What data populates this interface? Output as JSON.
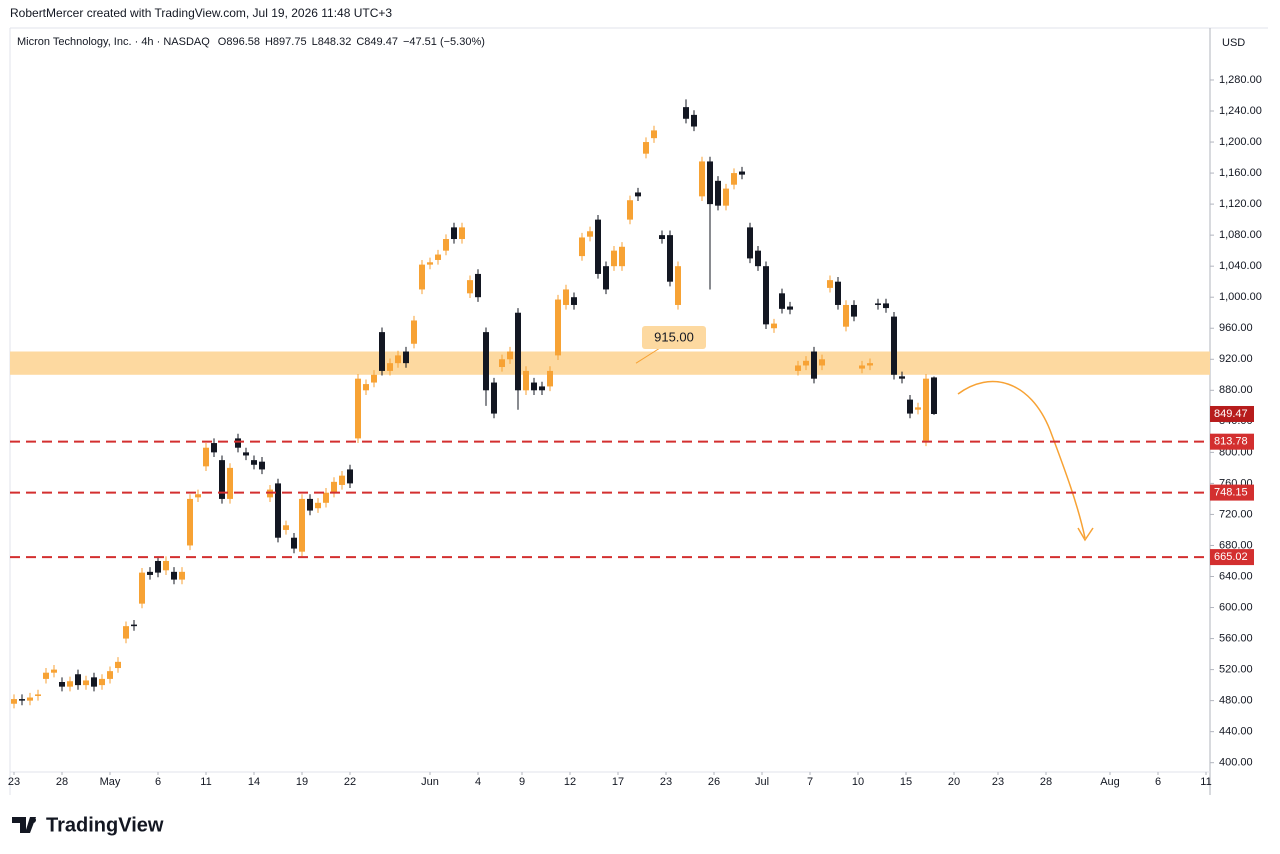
{
  "header": {
    "credit": "RobertMercer created with TradingView.com, Jul 19, 2026 11:48 UTC+3",
    "brand": "TradingView"
  },
  "chart_data": {
    "type": "candlestick",
    "symbol": "Micron Technology, Inc. · 4h · NASDAQ",
    "ohlc_text": [
      "O896.58",
      "H897.75",
      "L848.32",
      "C849.47"
    ],
    "change": "−47.51 (−5.30%)",
    "currency": "USD",
    "up_color": "#f7a234",
    "down_color": "#131722",
    "open": [
      476,
      482,
      480,
      486,
      508,
      516,
      504,
      498,
      514,
      500,
      510,
      500,
      508,
      522,
      560,
      578,
      605,
      646,
      660,
      648,
      646,
      636,
      680,
      742,
      782,
      812,
      790,
      740,
      818,
      800,
      790,
      788,
      742,
      760,
      700,
      690,
      672,
      740,
      728,
      735,
      748,
      758,
      778,
      818,
      880,
      890,
      955,
      905,
      915,
      930,
      940,
      1010,
      1042,
      1048,
      1060,
      1090,
      1075,
      1005,
      1030,
      955,
      890,
      910,
      920,
      980,
      880,
      890,
      885,
      885,
      925,
      990,
      1000,
      1053,
      1078,
      1100,
      1040,
      1040,
      1040,
      1100,
      1135,
      1185,
      1205,
      1080,
      1080,
      990,
      1245,
      1235,
      1130,
      1175,
      1150,
      1118,
      1145,
      1162,
      1090,
      1060,
      1040,
      960,
      1005,
      988,
      905,
      912,
      930,
      912,
      1012,
      1020,
      962,
      990,
      908,
      912,
      992,
      992,
      975,
      898,
      868,
      855,
      815,
      896.58
    ],
    "high": [
      488,
      488,
      490,
      494,
      522,
      526,
      510,
      511,
      520,
      512,
      516,
      514,
      524,
      536,
      582,
      584,
      651,
      652,
      666,
      666,
      652,
      652,
      746,
      752,
      812,
      818,
      796,
      786,
      824,
      806,
      796,
      794,
      758,
      766,
      712,
      696,
      746,
      746,
      741,
      754,
      768,
      776,
      784,
      901,
      894,
      906,
      961,
      921,
      931,
      936,
      976,
      1048,
      1051,
      1061,
      1081,
      1096,
      1096,
      1028,
      1036,
      961,
      896,
      926,
      936,
      986,
      911,
      896,
      891,
      911,
      1003,
      1016,
      1006,
      1083,
      1091,
      1106,
      1046,
      1066,
      1071,
      1131,
      1141,
      1206,
      1221,
      1086,
      1086,
      1046,
      1255,
      1241,
      1181,
      1181,
      1156,
      1146,
      1166,
      1168,
      1096,
      1066,
      1046,
      972,
      1011,
      994,
      918,
      924,
      936,
      926,
      1028,
      1026,
      996,
      996,
      918,
      921,
      998,
      998,
      981,
      904,
      874,
      864,
      901,
      897.75
    ],
    "low": [
      470,
      474,
      474,
      480,
      502,
      510,
      492,
      492,
      494,
      494,
      492,
      494,
      502,
      516,
      554,
      570,
      599,
      636,
      639,
      642,
      630,
      630,
      674,
      736,
      776,
      794,
      734,
      734,
      800,
      790,
      778,
      772,
      736,
      684,
      694,
      670,
      666,
      719,
      722,
      729,
      742,
      752,
      754,
      812,
      874,
      884,
      899,
      899,
      909,
      909,
      934,
      1004,
      1036,
      1042,
      1054,
      1069,
      1069,
      999,
      994,
      860,
      844,
      904,
      914,
      855,
      874,
      874,
      874,
      879,
      919,
      984,
      984,
      1047,
      1072,
      1024,
      1004,
      1034,
      1034,
      1094,
      1124,
      1179,
      1199,
      1069,
      1014,
      984,
      1224,
      1214,
      1124,
      1010,
      1112,
      1112,
      1139,
      1152,
      1044,
      1034,
      959,
      954,
      979,
      978,
      899,
      906,
      889,
      906,
      1006,
      984,
      956,
      969,
      902,
      906,
      984,
      980,
      894,
      889,
      844,
      849,
      808,
      848.32
    ],
    "close": [
      482,
      480,
      484,
      488,
      516,
      520,
      498,
      505,
      500,
      506,
      498,
      508,
      518,
      530,
      576,
      576,
      645,
      642,
      645,
      660,
      636,
      646,
      740,
      746,
      806,
      800,
      740,
      780,
      806,
      796,
      784,
      778,
      752,
      690,
      706,
      676,
      740,
      725,
      735,
      748,
      762,
      770,
      760,
      895,
      888,
      900,
      905,
      915,
      925,
      915,
      970,
      1042,
      1045,
      1055,
      1075,
      1075,
      1090,
      1022,
      1000,
      880,
      850,
      920,
      930,
      880,
      905,
      880,
      880,
      905,
      997,
      1010,
      990,
      1077,
      1085,
      1030,
      1010,
      1060,
      1065,
      1125,
      1130,
      1200,
      1215,
      1075,
      1020,
      1040,
      1230,
      1220,
      1175,
      1120,
      1118,
      1140,
      1160,
      1158,
      1050,
      1040,
      965,
      966,
      985,
      984,
      912,
      918,
      895,
      920,
      1022,
      990,
      990,
      975,
      912,
      915,
      990,
      986,
      900,
      895,
      850,
      858,
      895,
      849.47
    ],
    "xlim": [
      -0.5,
      149.5
    ],
    "xticks": [
      {
        "value": 0,
        "label": "23"
      },
      {
        "value": 6,
        "label": "28"
      },
      {
        "value": 12,
        "label": "May"
      },
      {
        "value": 18,
        "label": "6"
      },
      {
        "value": 24,
        "label": "11"
      },
      {
        "value": 30,
        "label": "14"
      },
      {
        "value": 36,
        "label": "19"
      },
      {
        "value": 42,
        "label": "22"
      },
      {
        "value": 52,
        "label": "Jun"
      },
      {
        "value": 58,
        "label": "4"
      },
      {
        "value": 63.5,
        "label": "9"
      },
      {
        "value": 69.5,
        "label": "12"
      },
      {
        "value": 75.5,
        "label": "17"
      },
      {
        "value": 81.5,
        "label": "23"
      },
      {
        "value": 87.5,
        "label": "26"
      },
      {
        "value": 93.5,
        "label": "Jul"
      },
      {
        "value": 99.5,
        "label": "7"
      },
      {
        "value": 105.5,
        "label": "10"
      },
      {
        "value": 111.5,
        "label": "15"
      },
      {
        "value": 117.5,
        "label": "20"
      },
      {
        "value": 123,
        "label": "23"
      },
      {
        "value": 129,
        "label": "28"
      },
      {
        "value": 137,
        "label": "Aug"
      },
      {
        "value": 143,
        "label": "6"
      },
      {
        "value": 149,
        "label": "11"
      }
    ],
    "ylim": [
      388,
      1347
    ],
    "yticks": [
      {
        "value": 400,
        "label": "400.00"
      },
      {
        "value": 440,
        "label": "440.00"
      },
      {
        "value": 480,
        "label": "480.00"
      },
      {
        "value": 520,
        "label": "520.00"
      },
      {
        "value": 560,
        "label": "560.00"
      },
      {
        "value": 600,
        "label": "600.00"
      },
      {
        "value": 640,
        "label": "640.00"
      },
      {
        "value": 680,
        "label": "680.00"
      },
      {
        "value": 720,
        "label": "720.00"
      },
      {
        "value": 760,
        "label": "760.00"
      },
      {
        "value": 800,
        "label": "800.00"
      },
      {
        "value": 840,
        "label": "840.00"
      },
      {
        "value": 880,
        "label": "880.00"
      },
      {
        "value": 920,
        "label": "920.00"
      },
      {
        "value": 960,
        "label": "960.00"
      },
      {
        "value": 1000,
        "label": "1,000.00"
      },
      {
        "value": 1040,
        "label": "1,040.00"
      },
      {
        "value": 1080,
        "label": "1,080.00"
      },
      {
        "value": 1120,
        "label": "1,120.00"
      },
      {
        "value": 1160,
        "label": "1,160.00"
      },
      {
        "value": 1200,
        "label": "1,200.00"
      },
      {
        "value": 1240,
        "label": "1,240.00"
      },
      {
        "value": 1280,
        "label": "1,280.00"
      }
    ],
    "levels": [
      813.78,
      748.15,
      665.02
    ],
    "level_color": "#d32f2f",
    "zone": {
      "from": 900,
      "to": 930,
      "color": "#fdd9a0"
    },
    "zone_label": {
      "value": 915,
      "label": "915.00"
    }
  }
}
